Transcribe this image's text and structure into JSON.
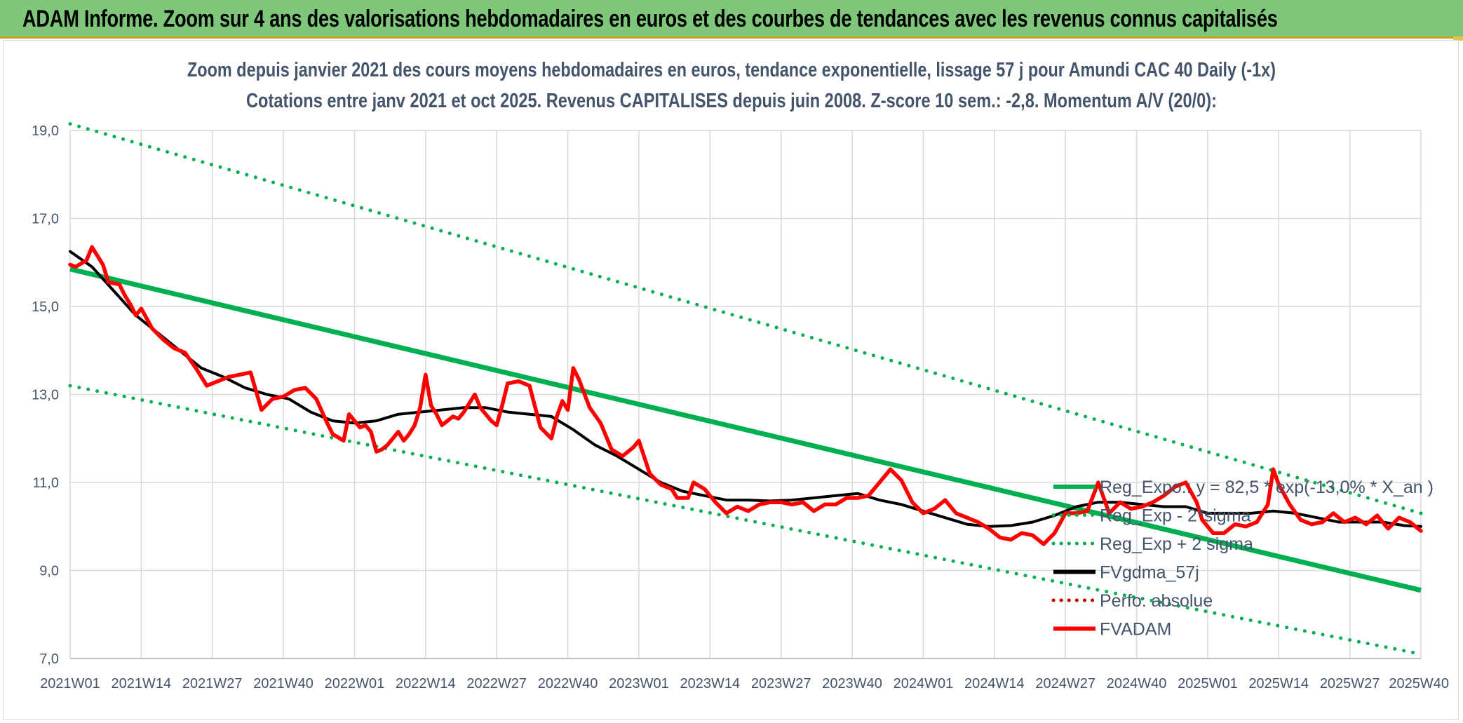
{
  "banner": {
    "text": "ADAM Informe. Zoom sur 4 ans des valorisations hebdomadaires en euros et des courbes de tendances avec les revenus connus capitalisés"
  },
  "chart_data": {
    "type": "line",
    "title": "Zoom depuis janvier 2021 des cours moyens hebdomadaires en euros, tendance exponentielle, lissage 57 j pour Amundi CAC 40 Daily (-1x)",
    "subtitle": "Cotations entre janv 2021 et oct 2025. Revenus CAPITALISES depuis juin 2008. Z-score 10 sem.: -2,8. Momentum A/V (20/0):",
    "xlabel": "",
    "ylabel": "",
    "ylim": [
      7.0,
      19.0
    ],
    "yticks": [
      "19,0",
      "17,0",
      "15,0",
      "13,0",
      "11,0",
      "9,0",
      "7,0"
    ],
    "ytick_values": [
      19,
      17,
      15,
      13,
      11,
      9,
      7
    ],
    "x_range_weeks": [
      0,
      247
    ],
    "xticks": [
      "2021W01",
      "2021W14",
      "2021W27",
      "2021W40",
      "2022W01",
      "2022W14",
      "2022W27",
      "2022W40",
      "2023W01",
      "2023W14",
      "2023W27",
      "2023W40",
      "2024W01",
      "2024W14",
      "2024W27",
      "2024W40",
      "2025W01",
      "2025W14",
      "2025W27",
      "2025W40"
    ],
    "xtick_weeks": [
      0,
      13,
      26,
      39,
      52,
      65,
      78,
      91,
      104,
      117,
      130,
      143,
      156,
      169,
      182,
      195,
      208,
      221,
      234,
      247
    ],
    "legend_position": "right",
    "legend": [
      {
        "key": "reg",
        "label": "Reg_Expo.: y = 82,5 * exp(-13,0% * X_an )",
        "style": "solid",
        "color": "#00b050"
      },
      {
        "key": "lower",
        "label": "Reg_Exp - 2*sigma",
        "style": "dotted",
        "color": "#00b050"
      },
      {
        "key": "upper",
        "label": "Reg_Exp + 2 sigma",
        "style": "dotted",
        "color": "#00b050"
      },
      {
        "key": "sma",
        "label": "FVgdma_57j",
        "style": "solid",
        "color": "#000000"
      },
      {
        "key": "perf",
        "label": "Perfo. absolue",
        "style": "dotted",
        "color": "#c00000"
      },
      {
        "key": "adam",
        "label": "FVADAM",
        "style": "solid",
        "color": "#ff0000"
      }
    ],
    "series": [
      {
        "name": "Reg_Expo.: y = 82,5 * exp(-13,0% * X_an )",
        "key": "reg",
        "x": [
          0,
          247
        ],
        "values": [
          15.85,
          8.55
        ]
      },
      {
        "name": "Reg_Exp + 2 sigma",
        "key": "upper",
        "x": [
          0,
          247
        ],
        "values": [
          19.15,
          10.3
        ]
      },
      {
        "name": "Reg_Exp - 2*sigma",
        "key": "lower",
        "x": [
          0,
          247
        ],
        "values": [
          13.2,
          7.1
        ]
      },
      {
        "name": "FVgdma_57j",
        "key": "sma",
        "x": [
          0,
          4,
          8,
          12,
          16,
          20,
          24,
          28,
          32,
          36,
          40,
          44,
          48,
          52,
          56,
          60,
          64,
          68,
          72,
          76,
          80,
          84,
          88,
          92,
          96,
          100,
          104,
          108,
          112,
          116,
          120,
          124,
          128,
          132,
          136,
          140,
          144,
          148,
          152,
          156,
          160,
          164,
          168,
          172,
          176,
          180,
          184,
          188,
          192,
          196,
          200,
          204,
          208,
          212,
          216,
          220,
          224,
          228,
          232,
          236,
          240,
          244,
          247
        ],
        "values": [
          16.25,
          15.9,
          15.35,
          14.8,
          14.4,
          14.0,
          13.6,
          13.4,
          13.15,
          13.0,
          12.9,
          12.6,
          12.4,
          12.35,
          12.4,
          12.55,
          12.6,
          12.65,
          12.7,
          12.7,
          12.6,
          12.55,
          12.5,
          12.2,
          11.85,
          11.6,
          11.3,
          11.0,
          10.8,
          10.7,
          10.6,
          10.6,
          10.58,
          10.6,
          10.65,
          10.7,
          10.75,
          10.6,
          10.5,
          10.35,
          10.2,
          10.05,
          10.0,
          10.02,
          10.1,
          10.25,
          10.45,
          10.55,
          10.55,
          10.5,
          10.45,
          10.45,
          10.3,
          10.3,
          10.3,
          10.35,
          10.3,
          10.2,
          10.1,
          10.1,
          10.1,
          10.02,
          10.0
        ]
      },
      {
        "name": "FVADAM",
        "key": "adam",
        "x": [
          0,
          1,
          3,
          4,
          6,
          7,
          9,
          10,
          11,
          12,
          13,
          15,
          17,
          19,
          21,
          23,
          25,
          26,
          27,
          29,
          31,
          33,
          35,
          37,
          39,
          41,
          43,
          45,
          47,
          48,
          50,
          51,
          53,
          54,
          55,
          56,
          57,
          58,
          60,
          61,
          62,
          63,
          64,
          65,
          66,
          67,
          68,
          70,
          71,
          72,
          74,
          75,
          77,
          78,
          79,
          80,
          82,
          84,
          86,
          88,
          89,
          90,
          91,
          92,
          93,
          95,
          97,
          99,
          101,
          102,
          103,
          104,
          106,
          108,
          110,
          111,
          113,
          114,
          116,
          118,
          120,
          122,
          124,
          126,
          128,
          130,
          132,
          134,
          136,
          138,
          140,
          142,
          144,
          146,
          148,
          150,
          152,
          154,
          156,
          158,
          160,
          162,
          164,
          166,
          168,
          170,
          172,
          174,
          176,
          178,
          180,
          182,
          184,
          186,
          188,
          190,
          192,
          194,
          196,
          198,
          200,
          202,
          204,
          206,
          207,
          209,
          211,
          213,
          215,
          217,
          219,
          220,
          221,
          223,
          225,
          227,
          229,
          231,
          233,
          235,
          237,
          239,
          241,
          243,
          245,
          247
        ],
        "values": [
          15.95,
          15.9,
          16.05,
          16.35,
          15.95,
          15.55,
          15.5,
          15.25,
          15.05,
          14.8,
          14.95,
          14.5,
          14.25,
          14.05,
          13.95,
          13.6,
          13.2,
          13.25,
          13.3,
          13.4,
          13.45,
          13.5,
          12.65,
          12.9,
          12.95,
          13.1,
          13.15,
          12.9,
          12.35,
          12.1,
          11.95,
          12.55,
          12.25,
          12.3,
          12.15,
          11.7,
          11.75,
          11.85,
          12.15,
          11.95,
          12.1,
          12.3,
          12.7,
          13.45,
          12.75,
          12.55,
          12.3,
          12.5,
          12.45,
          12.6,
          13.0,
          12.7,
          12.4,
          12.3,
          12.75,
          13.25,
          13.3,
          13.2,
          12.25,
          12.0,
          12.5,
          12.85,
          12.65,
          13.6,
          13.35,
          12.7,
          12.35,
          11.75,
          11.6,
          11.7,
          11.8,
          11.95,
          11.2,
          10.95,
          10.85,
          10.65,
          10.65,
          11.0,
          10.85,
          10.55,
          10.3,
          10.45,
          10.35,
          10.5,
          10.55,
          10.55,
          10.5,
          10.55,
          10.35,
          10.5,
          10.5,
          10.65,
          10.65,
          10.7,
          11.0,
          11.3,
          11.05,
          10.55,
          10.3,
          10.4,
          10.6,
          10.3,
          10.2,
          10.1,
          9.95,
          9.75,
          9.7,
          9.85,
          9.8,
          9.6,
          9.85,
          10.3,
          10.3,
          10.35,
          11.0,
          10.3,
          10.55,
          10.4,
          10.45,
          10.55,
          10.7,
          10.9,
          11.0,
          10.55,
          10.15,
          9.85,
          9.85,
          10.05,
          10.0,
          10.1,
          10.5,
          11.3,
          10.95,
          10.5,
          10.15,
          10.05,
          10.1,
          10.3,
          10.1,
          10.2,
          10.05,
          10.25,
          9.95,
          10.2,
          10.1,
          9.9
        ]
      }
    ]
  }
}
